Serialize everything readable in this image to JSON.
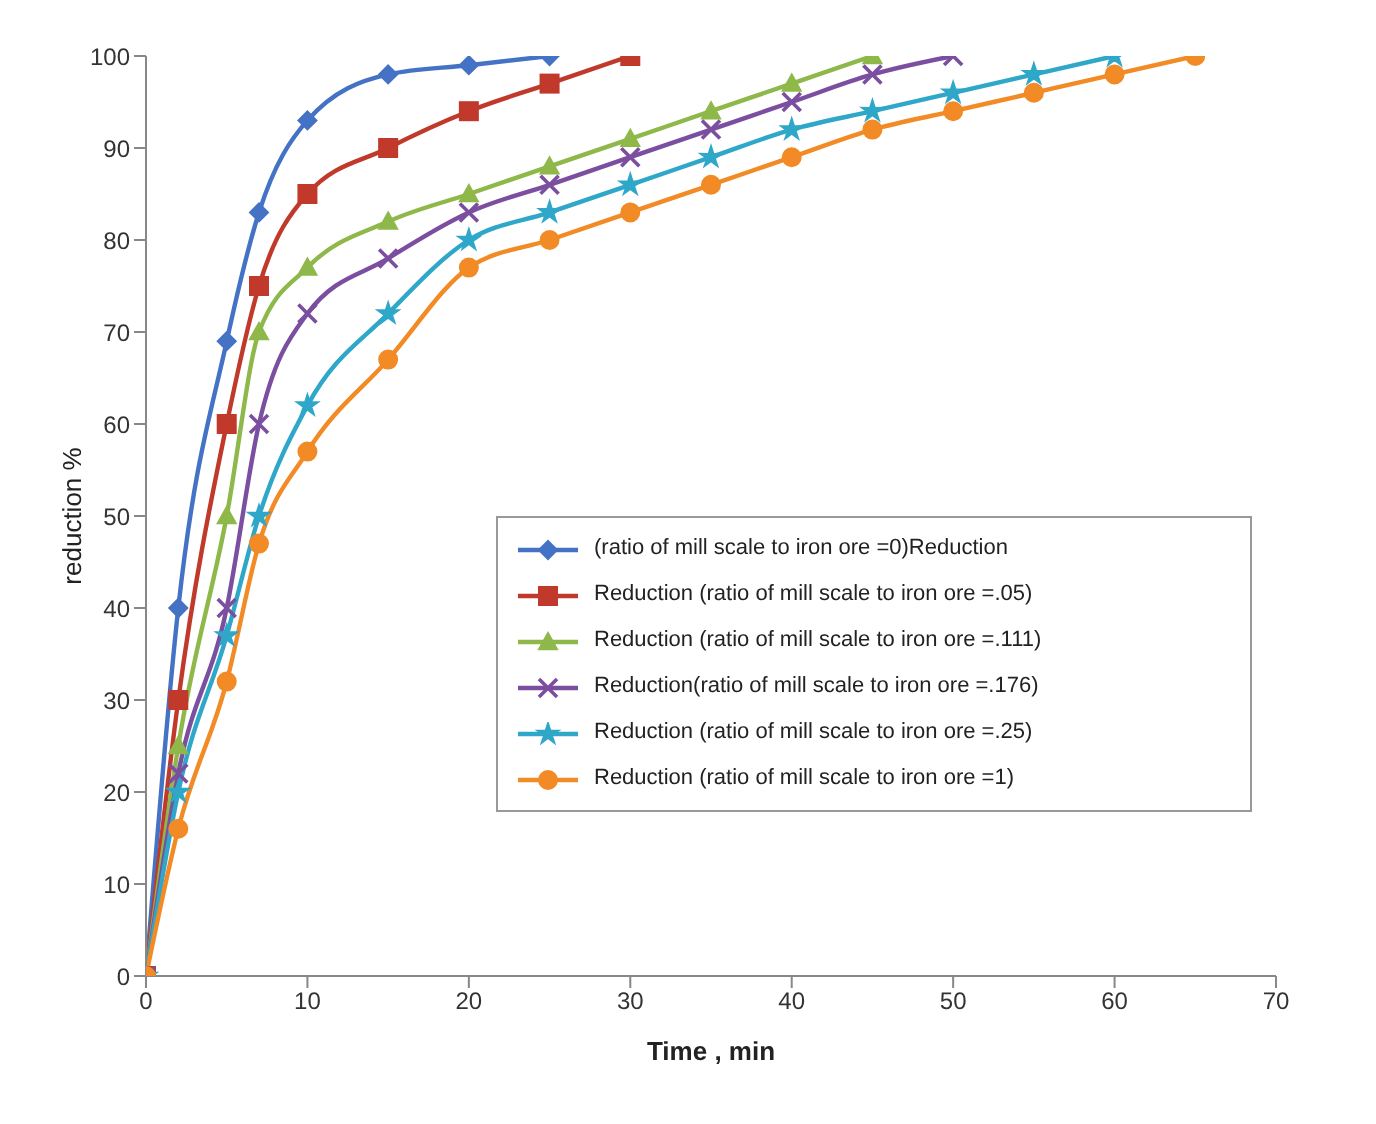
{
  "chart_data": {
    "type": "line",
    "xlabel": "Time , min",
    "ylabel": "reduction %",
    "xlim": [
      0,
      70
    ],
    "xticks": [
      0,
      10,
      20,
      30,
      40,
      50,
      60,
      70
    ],
    "ylim": [
      0,
      100
    ],
    "yticks": [
      0,
      10,
      20,
      30,
      40,
      50,
      60,
      70,
      80,
      90,
      100
    ],
    "grid": false,
    "legend": "right",
    "line_style": "solid",
    "series": [
      {
        "name": "(ratio of mill scale to iron ore =0)Reduction",
        "color": "#4472c4",
        "marker": "diamond",
        "x": [
          0,
          2,
          5,
          7,
          10,
          15,
          20,
          25
        ],
        "values": [
          0,
          40,
          69,
          83,
          93,
          98,
          99,
          100
        ]
      },
      {
        "name": "Reduction (ratio of mill scale to iron ore =.05)",
        "color": "#c0392b",
        "marker": "square",
        "x": [
          0,
          2,
          5,
          7,
          10,
          15,
          20,
          25,
          30
        ],
        "values": [
          0,
          30,
          60,
          75,
          85,
          90,
          94,
          97,
          100
        ]
      },
      {
        "name": "Reduction (ratio of mill scale to iron ore =.111)",
        "color": "#8fb84a",
        "marker": "triangle",
        "x": [
          0,
          2,
          5,
          7,
          10,
          15,
          20,
          25,
          30,
          35,
          40,
          45
        ],
        "values": [
          0,
          25,
          50,
          70,
          77,
          82,
          85,
          88,
          91,
          94,
          97,
          100
        ]
      },
      {
        "name": "Reduction(ratio of mill scale to iron ore =.176)",
        "color": "#7b4ea0",
        "marker": "cross",
        "x": [
          0,
          2,
          5,
          7,
          10,
          15,
          20,
          25,
          30,
          35,
          40,
          45,
          50
        ],
        "values": [
          0,
          22,
          40,
          60,
          72,
          78,
          83,
          86,
          89,
          92,
          95,
          98,
          100
        ]
      },
      {
        "name": "Reduction (ratio of mill scale to iron ore =.25)",
        "color": "#2ea7c9",
        "marker": "star",
        "x": [
          0,
          2,
          5,
          7,
          10,
          15,
          20,
          25,
          30,
          35,
          40,
          45,
          50,
          55,
          60
        ],
        "values": [
          0,
          20,
          37,
          50,
          62,
          72,
          80,
          83,
          86,
          89,
          92,
          94,
          96,
          98,
          100
        ]
      },
      {
        "name": "Reduction (ratio of mill scale to iron ore =1)",
        "color": "#f28a25",
        "marker": "circle",
        "x": [
          0,
          2,
          5,
          7,
          10,
          15,
          20,
          25,
          30,
          35,
          40,
          45,
          50,
          55,
          60,
          65
        ],
        "values": [
          0,
          16,
          32,
          47,
          57,
          67,
          77,
          80,
          83,
          86,
          89,
          92,
          94,
          96,
          98,
          100
        ]
      }
    ]
  }
}
